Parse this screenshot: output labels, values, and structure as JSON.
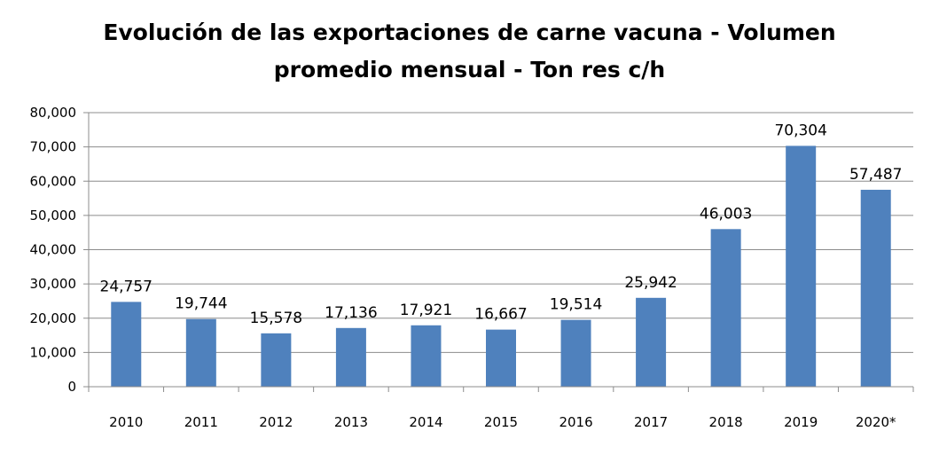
{
  "chart_data": {
    "type": "bar",
    "title_line1": "Evolución de las exportaciones de carne vacuna - Volumen",
    "title_line2": "promedio mensual - Ton res c/h",
    "xlabel": "",
    "ylabel": "",
    "categories": [
      "2010",
      "2011",
      "2012",
      "2013",
      "2014",
      "2015",
      "2016",
      "2017",
      "2018",
      "2019",
      "2020*"
    ],
    "values": [
      24757,
      19744,
      15578,
      17136,
      17921,
      16667,
      19514,
      25942,
      46003,
      70304,
      57487
    ],
    "data_labels": [
      "24,757",
      "19,744",
      "15,578",
      "17,136",
      "17,921",
      "16,667",
      "19,514",
      "25,942",
      "46,003",
      "70,304",
      "57,487"
    ],
    "ylim": [
      0,
      80000
    ],
    "yticks": [
      0,
      10000,
      20000,
      30000,
      40000,
      50000,
      60000,
      70000,
      80000
    ],
    "ytick_labels": [
      "0",
      "10,000",
      "20,000",
      "30,000",
      "40,000",
      "50,000",
      "60,000",
      "70,000",
      "80,000"
    ],
    "grid": true,
    "legend": "none",
    "colors": {
      "bar": "#4f81bd",
      "grid": "#8c8c8c",
      "axis": "#8c8c8c"
    }
  }
}
